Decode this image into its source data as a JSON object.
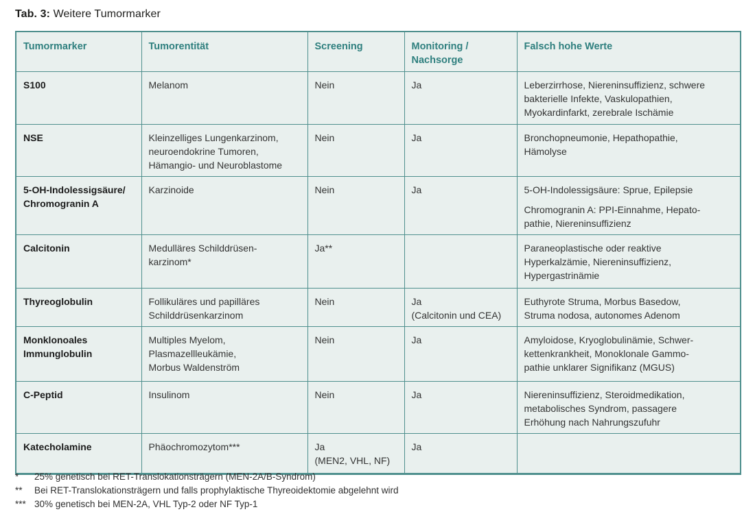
{
  "title": {
    "prefix": "Tab. 3:",
    "text": "Weitere Tumormarker"
  },
  "colors": {
    "table_background": "#e9f0ee",
    "border": "#4e8f8d",
    "header_text": "#2e7f7e",
    "body_text": "#333333"
  },
  "table": {
    "headers": {
      "tumormarker": "Tumormarker",
      "tumorentitaet": "Tumorentität",
      "screening": "Screening",
      "monitoring": "Monitoring /\nNachsorge",
      "falsch_hohe_werte": "Falsch hohe Werte"
    },
    "rows": [
      {
        "marker": "S100",
        "entity": "Melanom",
        "screening": "Nein",
        "monitoring": "Ja",
        "false_high": "Leberzirrhose, Niereninsuffizienz, schwere\nbakterielle Infekte, Vaskulopathien,\nMyokardinfarkt, zerebrale Ischämie"
      },
      {
        "marker": "NSE",
        "entity": "Kleinzelliges Lungenkarzinom,\nneuroendokrine Tumoren,\nHämangio- und Neuroblastome",
        "screening": "Nein",
        "monitoring": "Ja",
        "false_high": "Bronchopneumonie, Hepathopathie,\nHämolyse"
      },
      {
        "marker": "5-OH-Indolessigsäure/\nChromogranin A",
        "entity": "Karzinoide",
        "screening": "Nein",
        "monitoring": "Ja",
        "false_high": "5-OH-Indolessigsäure: Sprue, Epilepsie",
        "false_high2": "Chromogranin A: PPI-Einnahme, Hepato-\npathie, Niereninsuffizienz"
      },
      {
        "marker": "Calcitonin",
        "entity": "Medulläres Schilddrüsen-\nkarzinom*",
        "screening": "Ja**",
        "monitoring": "",
        "false_high": "Paraneoplastische oder reaktive\nHyperkalzämie, Niereninsuffizienz,\nHypergastrinämie"
      },
      {
        "marker": "Thyreoglobulin",
        "entity": "Follikuläres und papilläres\nSchilddrüsenkarzinom",
        "screening": "Nein",
        "monitoring": "Ja\n(Calcitonin und CEA)",
        "false_high": "Euthyrote Struma, Morbus Basedow,\nStruma nodosa, autonomes Adenom"
      },
      {
        "marker": "Monklonoales\nImmunglobulin",
        "entity": "Multiples Myelom,\nPlasmazellleukämie,\nMorbus Waldenström",
        "screening": "Nein",
        "monitoring": "Ja",
        "false_high": "Amyloidose, Kryoglobulinämie, Schwer-\nkettenkrankheit, Monoklonale Gammo-\npathie unklarer Signifikanz (MGUS)"
      },
      {
        "marker": "C-Peptid",
        "entity": "Insulinom",
        "screening": "Nein",
        "monitoring": "Ja",
        "false_high": "Niereninsuffizienz, Steroidmedikation,\nmetabolisches Syndrom, passagere\nErhöhung nach Nahrungszufuhr"
      },
      {
        "marker": "Katecholamine",
        "entity": "Phäochromozytom***",
        "screening": "Ja\n(MEN2, VHL, NF)",
        "monitoring": "Ja",
        "false_high": ""
      }
    ]
  },
  "footnotes": [
    {
      "marker": "*",
      "text": "25% genetisch bei RET-Translokationsträgern (MEN-2A/B-Syndrom)"
    },
    {
      "marker": "**",
      "text": "Bei RET-Translokationsträgern und falls prophylaktische Thyreoidektomie abgelehnt wird"
    },
    {
      "marker": "***",
      "text": "30% genetisch bei MEN-2A, VHL Typ-2 oder NF Typ-1"
    }
  ]
}
